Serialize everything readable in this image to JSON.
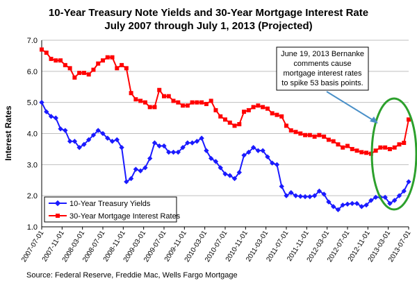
{
  "chart_data": {
    "type": "line",
    "title_line1": "10-Year Treasury Note Yields and 30-Year Mortgage Interest Rate",
    "title_line2": "July 2007 through July 1, 2013 (Projected)",
    "ylabel": "Interest Rates",
    "ylim": [
      1.0,
      7.0
    ],
    "yticks": [
      "1.0",
      "2.0",
      "3.0",
      "4.0",
      "5.0",
      "6.0",
      "7.0"
    ],
    "xticks": [
      "2007-07-01",
      "2007-11-01",
      "2008-03-01",
      "2008-07-01",
      "2008-11-01",
      "2009-03-01",
      "2009-07-01",
      "2009-11-01",
      "2010-03-01",
      "2010-07-01",
      "2010-11-01",
      "2011-03-01",
      "2011-07-01",
      "2011-11-01",
      "2012-03-01",
      "2012-07-01",
      "2012-11-01",
      "2013-03-01",
      "2013-07-01"
    ],
    "grid": true,
    "legend_position": "bottom-left",
    "series": [
      {
        "name": "10-Year Treasury Yields",
        "color": "#1a1aff",
        "values": [
          5.0,
          4.7,
          4.55,
          4.5,
          4.15,
          4.1,
          3.75,
          3.75,
          3.55,
          3.65,
          3.8,
          3.95,
          4.1,
          4.0,
          3.85,
          3.75,
          3.8,
          3.55,
          2.45,
          2.55,
          2.85,
          2.8,
          2.9,
          3.2,
          3.7,
          3.6,
          3.6,
          3.4,
          3.4,
          3.4,
          3.55,
          3.7,
          3.7,
          3.75,
          3.85,
          3.45,
          3.2,
          3.1,
          2.9,
          2.7,
          2.65,
          2.55,
          2.75,
          3.3,
          3.4,
          3.55,
          3.45,
          3.45,
          3.25,
          3.05,
          3.0,
          2.3,
          2.0,
          2.1,
          2.0,
          1.98,
          1.97,
          1.97,
          2.0,
          2.15,
          2.05,
          1.8,
          1.65,
          1.55,
          1.7,
          1.73,
          1.75,
          1.75,
          1.65,
          1.7,
          1.85,
          1.95,
          1.95,
          1.95,
          1.75,
          1.85,
          2.0,
          2.15,
          2.45
        ]
      },
      {
        "name": "30-Year Mortgage Interest Rates",
        "color": "#ff0000",
        "values": [
          6.7,
          6.6,
          6.4,
          6.35,
          6.35,
          6.2,
          6.1,
          5.8,
          5.95,
          5.95,
          5.9,
          6.05,
          6.25,
          6.35,
          6.45,
          6.45,
          6.1,
          6.2,
          6.1,
          5.3,
          5.1,
          5.05,
          5.0,
          4.85,
          4.85,
          5.4,
          5.2,
          5.2,
          5.05,
          5.0,
          4.9,
          4.9,
          5.0,
          5.0,
          5.0,
          4.95,
          5.05,
          4.75,
          4.55,
          4.45,
          4.35,
          4.25,
          4.3,
          4.7,
          4.75,
          4.85,
          4.9,
          4.85,
          4.8,
          4.65,
          4.6,
          4.55,
          4.25,
          4.1,
          4.05,
          4.0,
          3.95,
          3.95,
          3.9,
          3.95,
          3.9,
          3.8,
          3.75,
          3.65,
          3.55,
          3.6,
          3.5,
          3.45,
          3.4,
          3.38,
          3.35,
          3.45,
          3.55,
          3.55,
          3.5,
          3.55,
          3.65,
          3.7,
          4.45
        ]
      }
    ],
    "annotation": {
      "lines": [
        "June 19, 2013 Bernanke",
        "comments cause",
        "mortgage interest rates",
        "to spike 53 basis points."
      ],
      "arrow_color": "#4a90c8",
      "highlight_color": "#2ca02c"
    },
    "source": "Source: Federal Reserve, Freddie Mac, Wells Fargo Mortgage"
  }
}
